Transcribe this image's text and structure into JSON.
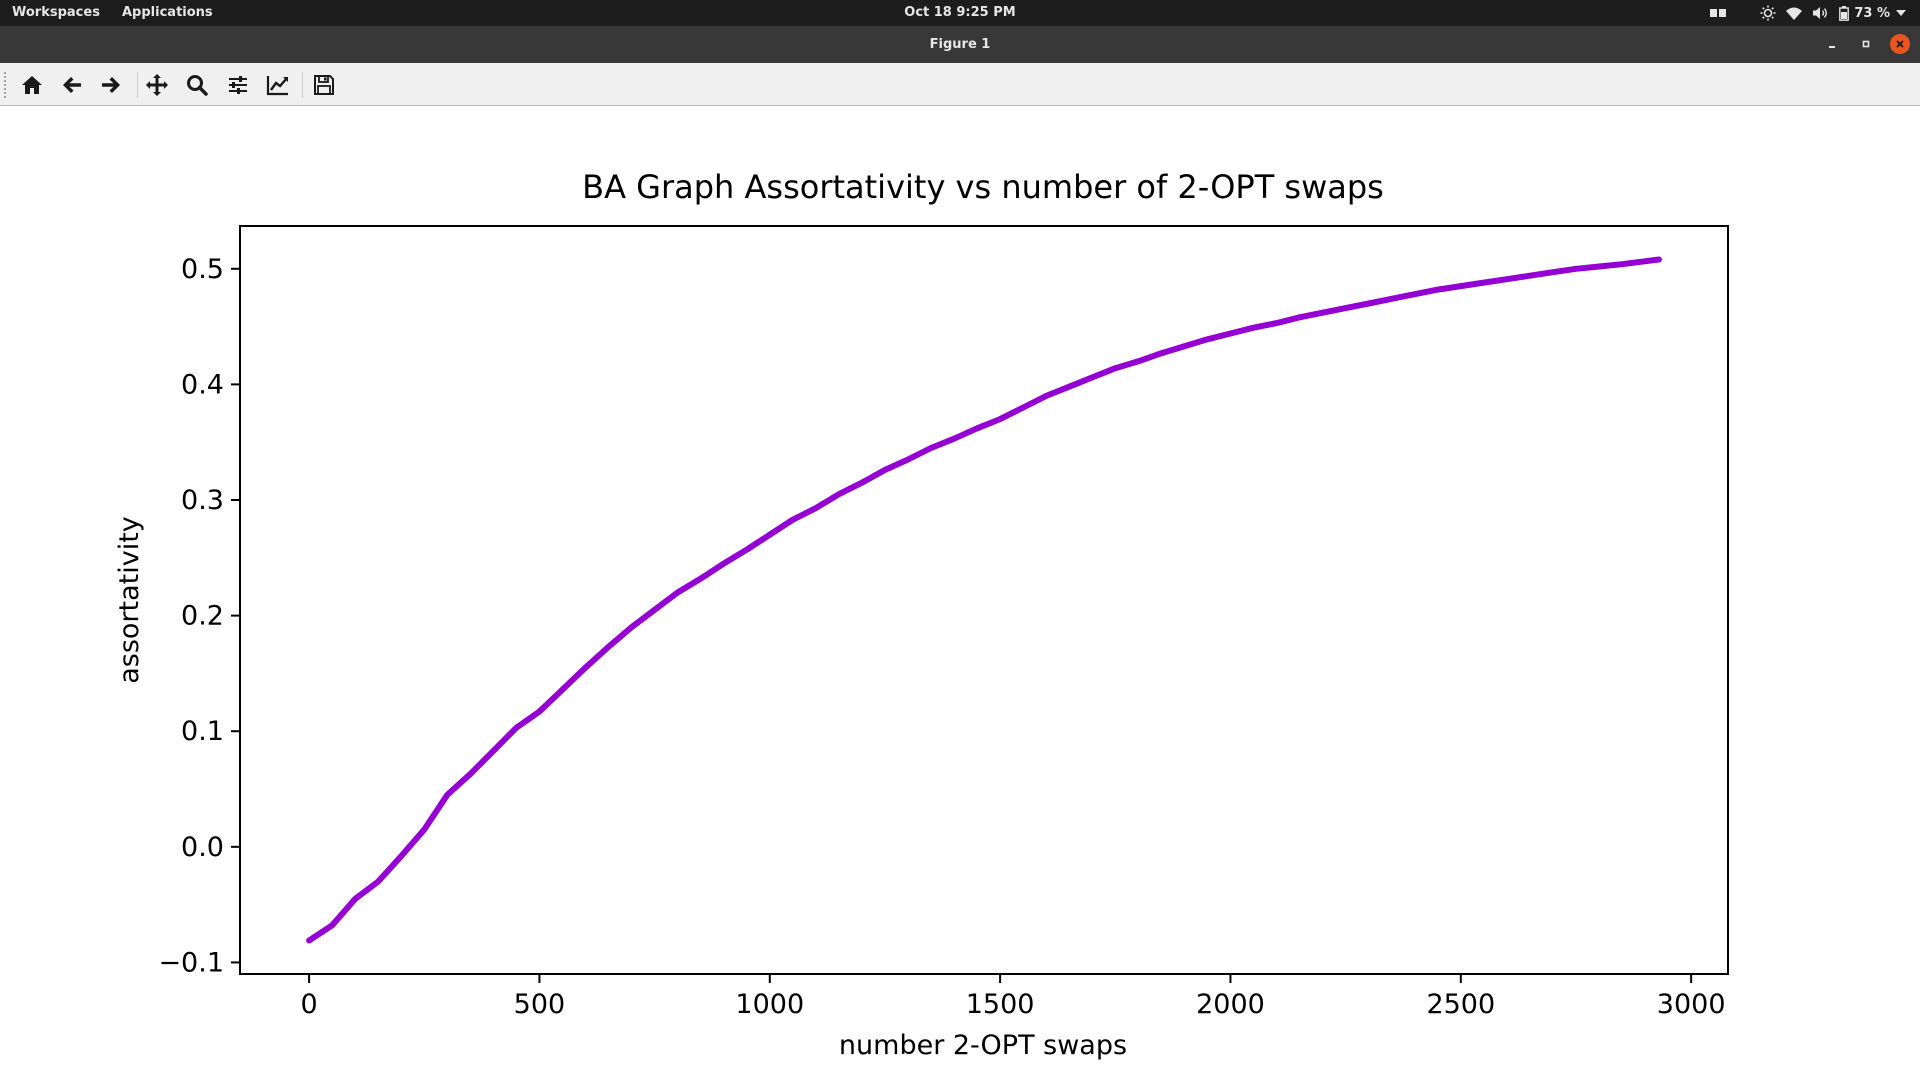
{
  "topbar": {
    "workspaces": "Workspaces",
    "applications": "Applications",
    "clock": "Oct 18   9:25 PM",
    "battery": "73 %",
    "tray_icons": [
      "panel-icon",
      "brightness-icon",
      "wifi-icon",
      "volume-icon",
      "battery-icon",
      "dropdown-arrow-icon"
    ]
  },
  "window": {
    "title": "Figure 1",
    "close_color": "#e95420"
  },
  "toolbar": {
    "icons": [
      "home-icon",
      "back-arrow-icon",
      "forward-arrow-icon",
      "pan-icon",
      "zoom-icon",
      "configure-subplots-icon",
      "edit-axis-icon",
      "save-icon"
    ]
  },
  "chart_data": {
    "type": "line",
    "title": "BA Graph Assortativity vs number of 2-OPT swaps",
    "xlabel": "number 2-OPT swaps",
    "ylabel": "assortativity",
    "xlim": [
      -150,
      3080
    ],
    "ylim": [
      -0.11,
      0.537
    ],
    "xticks": [
      0,
      500,
      1000,
      1500,
      2000,
      2500,
      3000
    ],
    "xtick_labels": [
      "0",
      "500",
      "1000",
      "1500",
      "2000",
      "2500",
      "3000"
    ],
    "yticks": [
      -0.1,
      0.0,
      0.1,
      0.2,
      0.3,
      0.4,
      0.5
    ],
    "ytick_labels": [
      "−0.1",
      "0.0",
      "0.1",
      "0.2",
      "0.3",
      "0.4",
      "0.5"
    ],
    "grid": false,
    "color": "#9400d3",
    "x": [
      0,
      50,
      100,
      150,
      200,
      250,
      300,
      350,
      400,
      450,
      500,
      550,
      600,
      650,
      700,
      750,
      800,
      850,
      900,
      950,
      1000,
      1050,
      1100,
      1150,
      1200,
      1250,
      1300,
      1350,
      1400,
      1450,
      1500,
      1550,
      1600,
      1650,
      1700,
      1750,
      1800,
      1850,
      1900,
      1950,
      2000,
      2050,
      2100,
      2150,
      2200,
      2250,
      2300,
      2350,
      2400,
      2450,
      2500,
      2550,
      2600,
      2650,
      2700,
      2750,
      2800,
      2850,
      2930
    ],
    "y": [
      -0.081,
      -0.068,
      -0.045,
      -0.03,
      -0.008,
      0.015,
      0.045,
      0.063,
      0.083,
      0.103,
      0.117,
      0.136,
      0.155,
      0.173,
      0.19,
      0.205,
      0.22,
      0.232,
      0.245,
      0.257,
      0.27,
      0.283,
      0.293,
      0.305,
      0.315,
      0.326,
      0.335,
      0.345,
      0.353,
      0.362,
      0.37,
      0.38,
      0.39,
      0.398,
      0.406,
      0.414,
      0.42,
      0.427,
      0.433,
      0.439,
      0.444,
      0.449,
      0.453,
      0.458,
      0.462,
      0.466,
      0.47,
      0.474,
      0.478,
      0.482,
      0.485,
      0.488,
      0.491,
      0.494,
      0.497,
      0.5,
      0.502,
      0.504,
      0.508
    ]
  }
}
